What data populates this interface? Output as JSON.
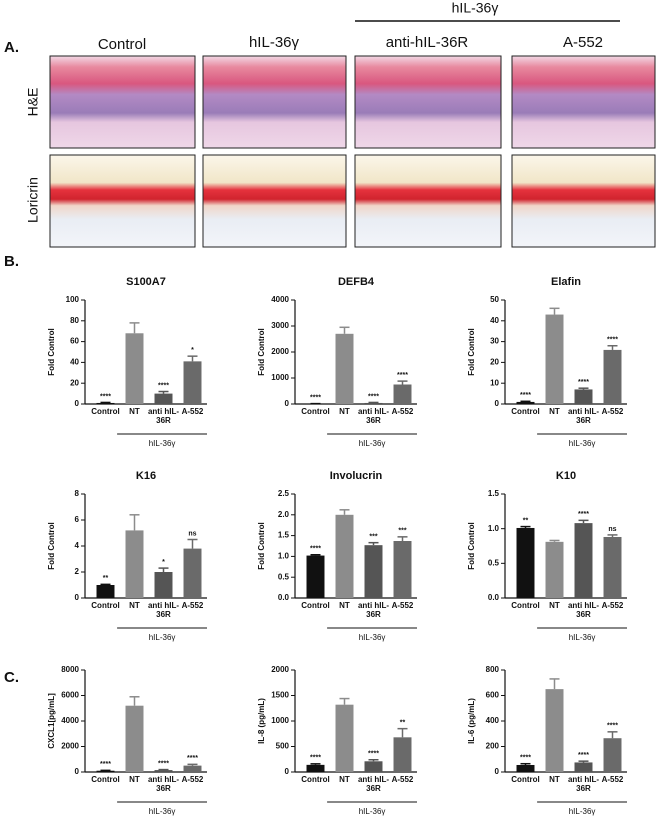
{
  "panel_labels": [
    "A.",
    "B.",
    "C."
  ],
  "histology": {
    "group_label": "hIL-36γ",
    "columns": [
      "Control",
      "hIL-36γ",
      "anti-hIL-36R",
      "A-552"
    ],
    "rows": [
      "H&E",
      "Loricrin"
    ]
  },
  "chart_data": [
    {
      "type": "bar",
      "title": "S100A7",
      "ylabel": "Fold Control",
      "group_label": "hIL-36γ",
      "categories": [
        "Control",
        "NT",
        "anti hIL-36R",
        "A-552"
      ],
      "values": [
        1,
        68,
        10,
        41
      ],
      "errors": [
        0.5,
        10,
        2,
        5
      ],
      "annotations": [
        "****",
        null,
        "****",
        "*"
      ],
      "colors": [
        "#111111",
        "#8c8c8c",
        "#555555",
        "#6a6a6a"
      ],
      "ylim": [
        0,
        100
      ],
      "yticks": [
        0,
        20,
        40,
        60,
        80,
        100
      ]
    },
    {
      "type": "bar",
      "title": "DEFB4",
      "ylabel": "Fold Control",
      "group_label": "hIL-36γ",
      "categories": [
        "Control",
        "NT",
        "anti hIL-36R",
        "A-552"
      ],
      "values": [
        10,
        2700,
        40,
        750
      ],
      "errors": [
        5,
        250,
        20,
        130
      ],
      "annotations": [
        "****",
        null,
        "****",
        "****"
      ],
      "colors": [
        "#111111",
        "#8c8c8c",
        "#555555",
        "#6a6a6a"
      ],
      "ylim": [
        0,
        4000
      ],
      "yticks": [
        0,
        1000,
        2000,
        3000,
        4000
      ]
    },
    {
      "type": "bar",
      "title": "Elafin",
      "ylabel": "Fold Control",
      "group_label": "hIL-36γ",
      "categories": [
        "Control",
        "NT",
        "anti hIL-36R",
        "A-552"
      ],
      "values": [
        1,
        43,
        7,
        26
      ],
      "errors": [
        0.3,
        3,
        0.6,
        2
      ],
      "annotations": [
        "****",
        null,
        "****",
        "****"
      ],
      "colors": [
        "#111111",
        "#8c8c8c",
        "#555555",
        "#6a6a6a"
      ],
      "ylim": [
        0,
        50
      ],
      "yticks": [
        0,
        10,
        20,
        30,
        40,
        50
      ]
    },
    {
      "type": "bar",
      "title": "K16",
      "ylabel": "Fold Control",
      "group_label": "hIL-36γ",
      "categories": [
        "Control",
        "NT",
        "anti hIL-36R",
        "A-552"
      ],
      "values": [
        1,
        5.2,
        2,
        3.8
      ],
      "errors": [
        0.05,
        1.2,
        0.3,
        0.7
      ],
      "annotations": [
        "**",
        null,
        "*",
        "ns"
      ],
      "colors": [
        "#111111",
        "#8c8c8c",
        "#555555",
        "#6a6a6a"
      ],
      "ylim": [
        0,
        8
      ],
      "yticks": [
        0,
        2,
        4,
        6,
        8
      ]
    },
    {
      "type": "bar",
      "title": "Involucrin",
      "ylabel": "Fold Control",
      "group_label": "hIL-36γ",
      "categories": [
        "Control",
        "NT",
        "anti hIL-36R",
        "A-552"
      ],
      "values": [
        1.02,
        2,
        1.27,
        1.37
      ],
      "errors": [
        0.02,
        0.12,
        0.06,
        0.1
      ],
      "annotations": [
        "****",
        null,
        "***",
        "***"
      ],
      "colors": [
        "#111111",
        "#8c8c8c",
        "#555555",
        "#6a6a6a"
      ],
      "ylim": [
        0,
        2.5
      ],
      "yticks": [
        {
          "value": 0,
          "label": "0.0"
        },
        0.5,
        {
          "value": 1,
          "label": "1.0"
        },
        1.5,
        {
          "value": 2,
          "label": "2.0"
        },
        2.5
      ]
    },
    {
      "type": "bar",
      "title": "K10",
      "ylabel": "Fold Control",
      "group_label": "hIL-36γ",
      "categories": [
        "Control",
        "NT",
        "anti hIL-36R",
        "A-552"
      ],
      "values": [
        1.01,
        0.81,
        1.08,
        0.88
      ],
      "errors": [
        0.02,
        0.02,
        0.04,
        0.03
      ],
      "annotations": [
        "**",
        null,
        "****",
        "ns"
      ],
      "colors": [
        "#111111",
        "#8c8c8c",
        "#555555",
        "#6a6a6a"
      ],
      "ylim": [
        0,
        1.5
      ],
      "yticks": [
        {
          "value": 0,
          "label": "0.0"
        },
        0.5,
        {
          "value": 1,
          "label": "1.0"
        },
        1.5
      ]
    },
    {
      "type": "bar",
      "ylabel": "CXCL1[pg/mL]",
      "group_label": "hIL-36γ",
      "categories": [
        "Control",
        "NT",
        "anti hIL-36R",
        "A-552"
      ],
      "values": [
        100,
        5200,
        150,
        500
      ],
      "errors": [
        30,
        700,
        40,
        100
      ],
      "annotations": [
        "****",
        null,
        "****",
        "****"
      ],
      "colors": [
        "#111111",
        "#8c8c8c",
        "#555555",
        "#6a6a6a"
      ],
      "ylim": [
        0,
        8000
      ],
      "yticks": [
        0,
        2000,
        4000,
        6000,
        8000
      ]
    },
    {
      "type": "bar",
      "ylabel": "IL-8 (pg/mL)",
      "group_label": "hIL-36γ",
      "categories": [
        "Control",
        "NT",
        "anti hIL-36R",
        "A-552"
      ],
      "values": [
        140,
        1320,
        210,
        680
      ],
      "errors": [
        20,
        120,
        30,
        170
      ],
      "annotations": [
        "****",
        null,
        "****",
        "**"
      ],
      "colors": [
        "#111111",
        "#8c8c8c",
        "#555555",
        "#6a6a6a"
      ],
      "ylim": [
        0,
        2000
      ],
      "yticks": [
        0,
        500,
        1000,
        1500,
        2000
      ]
    },
    {
      "type": "bar",
      "ylabel": "IL-6 (pg/mL)",
      "group_label": "hIL-36γ",
      "categories": [
        "Control",
        "NT",
        "anti hIL-36R",
        "A-552"
      ],
      "values": [
        55,
        650,
        75,
        265
      ],
      "errors": [
        10,
        80,
        10,
        50
      ],
      "annotations": [
        "****",
        null,
        "****",
        "****"
      ],
      "colors": [
        "#111111",
        "#8c8c8c",
        "#555555",
        "#6a6a6a"
      ],
      "ylim": [
        0,
        800
      ],
      "yticks": [
        0,
        200,
        400,
        600,
        800
      ]
    }
  ]
}
